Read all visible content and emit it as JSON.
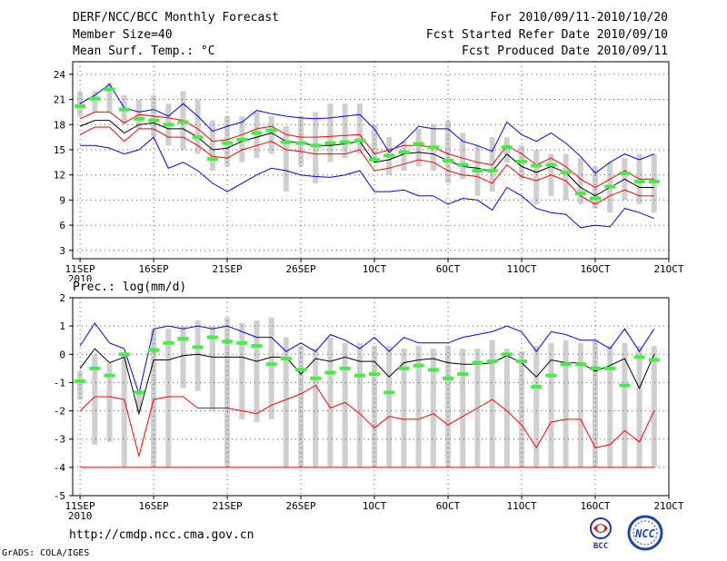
{
  "header": {
    "title": "DERF/NCC/BCC Monthly Forecast",
    "member_size": "Member Size=40",
    "variable": "Mean Surf. Temp.: °C",
    "period": "For 2010/09/11-2010/10/20",
    "start_date": "Fcst Started Refer Date 2010/09/10",
    "produced_date": "Fcst Produced Date 2010/09/11"
  },
  "footer": {
    "url": "http://cmdp.ncc.cma.gov.cn",
    "credit": "GrADS: COLA/IGES"
  },
  "logos": {
    "left_text": "BCC",
    "right_text": "NCC"
  },
  "colors": {
    "envelope": "#0000ff",
    "percentile": "#ff0000",
    "mean": "#000000",
    "observed": "#44ee44",
    "box": "#cfcfcf"
  },
  "chart_data": [
    {
      "type": "line",
      "title": "Mean Surf. Temp.: °C",
      "ylim": [
        2,
        25.5
      ],
      "yticks": [
        3,
        6,
        9,
        12,
        15,
        18,
        21,
        24
      ],
      "xlim": [
        0.5,
        41
      ],
      "xticks": [
        {
          "x": 1,
          "label": "11SEP",
          "sub": "2010"
        },
        {
          "x": 6,
          "label": "16SEP"
        },
        {
          "x": 11,
          "label": "21SEP"
        },
        {
          "x": 16,
          "label": "26SEP"
        },
        {
          "x": 21,
          "label": "1OCT"
        },
        {
          "x": 26,
          "label": "6OCT"
        },
        {
          "x": 31,
          "label": "11OCT"
        },
        {
          "x": 36,
          "label": "16OCT"
        },
        {
          "x": 41,
          "label": "21OCT"
        }
      ],
      "x": [
        1,
        2,
        3,
        4,
        5,
        6,
        7,
        8,
        9,
        10,
        11,
        12,
        13,
        14,
        15,
        16,
        17,
        18,
        19,
        20,
        21,
        22,
        23,
        24,
        25,
        26,
        27,
        28,
        29,
        30,
        31,
        32,
        33,
        34,
        35,
        36,
        37,
        38,
        39,
        40
      ],
      "series": [
        {
          "name": "max",
          "color": "#0000ff",
          "values": [
            20.5,
            21.5,
            22.8,
            20,
            19.5,
            19.8,
            19,
            20.5,
            19,
            17.2,
            17.8,
            18.3,
            19.7,
            19.3,
            19,
            18.8,
            18.7,
            18.8,
            19,
            19.2,
            17.5,
            14.7,
            16,
            17.8,
            17.5,
            17.5,
            16,
            15.5,
            14.8,
            18.3,
            16.8,
            16,
            17,
            15.8,
            14.2,
            12.2,
            13.5,
            14.5,
            13.8,
            14.5
          ]
        },
        {
          "name": "p75",
          "color": "#ff0000",
          "values": [
            18.7,
            19.5,
            19.5,
            18.2,
            19.2,
            19,
            18.8,
            18.5,
            17.5,
            16,
            16.2,
            16.8,
            17.5,
            17.8,
            16.8,
            16.5,
            16.5,
            16.6,
            16.7,
            16.8,
            14.5,
            15,
            15.5,
            15.5,
            15.3,
            14.5,
            14,
            13.5,
            13.2,
            15.5,
            14.5,
            13.2,
            14,
            13,
            11.5,
            10.5,
            11.5,
            12.5,
            11.5,
            11.5
          ]
        },
        {
          "name": "mean",
          "color": "#000000",
          "values": [
            17.8,
            18.5,
            18.5,
            17,
            18,
            18.2,
            17.5,
            17.5,
            16.5,
            15,
            15.2,
            16,
            16.5,
            17,
            16,
            15.8,
            15.5,
            15.5,
            15.7,
            16,
            13.5,
            13.8,
            14.5,
            14.7,
            14.5,
            13.7,
            13,
            12.8,
            12.4,
            14.5,
            13,
            12.3,
            13,
            12.3,
            10.5,
            9.5,
            10.5,
            11.5,
            10.5,
            10.5
          ]
        },
        {
          "name": "p25",
          "color": "#ff0000",
          "values": [
            16.8,
            17.7,
            17.7,
            16,
            17.5,
            17.5,
            16.5,
            16.5,
            15.5,
            14.2,
            14,
            15,
            15.5,
            16,
            15,
            14.8,
            14.5,
            14.5,
            14.5,
            15,
            12.5,
            12.8,
            13.3,
            13.8,
            13.5,
            12.5,
            12,
            11.8,
            11,
            13.2,
            11.8,
            11.3,
            12,
            11.3,
            9.5,
            8.5,
            9.5,
            10.2,
            9.5,
            9.5
          ]
        },
        {
          "name": "min",
          "color": "#0000ff",
          "values": [
            15.5,
            15.5,
            15.2,
            14.5,
            15,
            16.5,
            12.8,
            13.5,
            12.5,
            11,
            10,
            11,
            12,
            12.8,
            12.5,
            12,
            11.8,
            11.7,
            12,
            12.5,
            10,
            10,
            10.2,
            9.5,
            9.5,
            8.5,
            9.2,
            9,
            7.8,
            10.5,
            9.5,
            8,
            7.5,
            7.3,
            5.7,
            6,
            5.8,
            8,
            7.5,
            6.8
          ]
        }
      ],
      "boxes": {
        "hi": [
          22,
          22,
          23,
          21.5,
          21,
          21.5,
          20.5,
          22,
          21,
          18.5,
          19,
          19,
          19.5,
          19,
          17.8,
          19,
          19.5,
          20.5,
          20.5,
          20.5,
          18,
          16.5,
          16,
          17.5,
          18,
          18.5,
          17,
          15.5,
          16.5,
          16.5,
          15.5,
          15,
          14.5,
          14.5,
          14,
          13,
          13.5,
          14,
          14.5,
          14.5
        ],
        "lo": [
          19,
          19.5,
          19.5,
          18,
          17.5,
          16.5,
          15.5,
          15,
          14.5,
          12.5,
          13,
          13.5,
          14,
          14.5,
          10,
          13,
          11,
          13.5,
          14,
          14.5,
          14,
          12,
          12.5,
          13,
          12.5,
          11,
          11.5,
          9.5,
          10,
          13.5,
          11.5,
          8.5,
          9.5,
          9,
          8.5,
          8,
          7.5,
          9,
          8.5,
          7.5
        ]
      },
      "observed": [
        20.2,
        21.1,
        22.2,
        19.8,
        18.7,
        18.5,
        18.0,
        18.3,
        16.5,
        13.9,
        15.8,
        16.2,
        17.0,
        17.3,
        15.9,
        15.8,
        15.5,
        15.8,
        15.9,
        16.1,
        13.8,
        14.3,
        14.7,
        15.7,
        15.3,
        13.7,
        13.2,
        12.5,
        12.5,
        15.3,
        13.6,
        13.1,
        13.2,
        12.3,
        9.8,
        9.2,
        10.6,
        12.2,
        11.2,
        11.2
      ]
    },
    {
      "type": "line",
      "title": "Prec.: log(mm/d)",
      "ylim": [
        -5,
        2
      ],
      "yticks": [
        -5,
        -4,
        -3,
        -2,
        -1,
        0,
        1,
        2
      ],
      "xlim": [
        0.5,
        41
      ],
      "xticks": [
        {
          "x": 1,
          "label": "11SEP",
          "sub": "2010"
        },
        {
          "x": 6,
          "label": "16SEP"
        },
        {
          "x": 11,
          "label": "21SEP"
        },
        {
          "x": 16,
          "label": "26SEP"
        },
        {
          "x": 21,
          "label": "1OCT"
        },
        {
          "x": 26,
          "label": "6OCT"
        },
        {
          "x": 31,
          "label": "11OCT"
        },
        {
          "x": 36,
          "label": "16OCT"
        },
        {
          "x": 41,
          "label": "21OCT"
        }
      ],
      "x": [
        1,
        2,
        3,
        4,
        5,
        6,
        7,
        8,
        9,
        10,
        11,
        12,
        13,
        14,
        15,
        16,
        17,
        18,
        19,
        20,
        21,
        22,
        23,
        24,
        25,
        26,
        27,
        28,
        29,
        30,
        31,
        32,
        33,
        34,
        35,
        36,
        37,
        38,
        39,
        40
      ],
      "series": [
        {
          "name": "max",
          "color": "#0000ff",
          "values": [
            0.3,
            1.1,
            0.4,
            0.2,
            -1.4,
            0.9,
            1,
            0.9,
            1.0,
            0.9,
            1,
            0.8,
            0.6,
            0.6,
            0.1,
            0.4,
            0.1,
            0.7,
            0.5,
            0.2,
            0.6,
            0.1,
            0.6,
            0.4,
            0.4,
            0.4,
            0.6,
            0.7,
            0.8,
            1,
            0.8,
            0.1,
            0.8,
            0.7,
            0.5,
            0.5,
            0.2,
            0.9,
            0.1,
            0.9
          ]
        },
        {
          "name": "max-p",
          "color": "#000000",
          "values": [
            -0.5,
            0.2,
            -0.3,
            -0.1,
            -2.1,
            -0.2,
            -0.2,
            -0.05,
            0,
            -0.1,
            -0.1,
            -0.1,
            -0.25,
            -0.1,
            -0.1,
            -0.7,
            -0.15,
            -0.25,
            -0.1,
            -0.25,
            -0.25,
            -0.8,
            -0.3,
            -0.2,
            -0.15,
            -0.3,
            -0.35,
            -0.35,
            -0.3,
            -0.05,
            -0.3,
            -0.8,
            -0.2,
            -0.3,
            -0.3,
            -0.6,
            -0.4,
            -0.15,
            -1.2,
            0
          ]
        },
        {
          "name": "min",
          "color": "#ff0000",
          "values": [
            -2,
            -1.5,
            -1.5,
            -1.6,
            -3.6,
            -1.6,
            -1.5,
            -1.5,
            -1.9,
            -1.9,
            -1.9,
            -2,
            -2.1,
            -1.8,
            -1.6,
            -1.4,
            -1.1,
            -1.9,
            -1.7,
            -2.1,
            -2.6,
            -2.2,
            -2.3,
            -2.3,
            -2.1,
            -2.5,
            -2.2,
            -1.9,
            -1.6,
            -2,
            -2.5,
            -3.3,
            -2.4,
            -2.3,
            -2.3,
            -3.3,
            -3.2,
            -2.7,
            -3.1,
            -2
          ]
        },
        {
          "name": "floor",
          "color": "#ff0000",
          "values": [
            -4,
            -4,
            -4,
            -4,
            -4,
            -4,
            -4,
            -4,
            -4,
            -4,
            -4,
            -4,
            -4,
            -4,
            -4,
            -4,
            -4,
            -4,
            -4,
            -4,
            -4,
            -4,
            -4,
            -4,
            -4,
            -4,
            -4,
            -4,
            -4,
            -4,
            -4,
            -4,
            -4,
            -4,
            -4,
            -4,
            -4,
            -4,
            -4,
            -4
          ]
        }
      ],
      "boxes": {
        "hi": [
          -0.6,
          0,
          -0.3,
          0,
          -1.3,
          0.9,
          0.9,
          1,
          1.2,
          1,
          1.3,
          1.1,
          1.2,
          1.3,
          0.6,
          0.3,
          0.2,
          0.6,
          0.4,
          0.4,
          0.3,
          0.3,
          0.2,
          0.3,
          0.2,
          0.3,
          0.2,
          0.2,
          0.5,
          0.2,
          0.1,
          0.3,
          0.4,
          0.5,
          0.4,
          0.5,
          0.3,
          0.4,
          0.3,
          0.3
        ],
        "lo": [
          -1.6,
          -3.2,
          -3.1,
          -4,
          -2,
          -4,
          -4,
          -1.2,
          -1.3,
          -2,
          -4,
          -2.3,
          -2.4,
          -2.3,
          -4,
          -4,
          -4,
          -4,
          -4,
          -4,
          -4,
          -4,
          -4,
          -4,
          -4,
          -4,
          -4,
          -4,
          -4,
          -4,
          -4,
          -4,
          -4,
          -4,
          -4,
          -4,
          -4,
          -4,
          -4,
          -4
        ]
      },
      "observed": [
        -0.95,
        -0.5,
        -0.75,
        0,
        -1.35,
        0.15,
        0.4,
        0.55,
        0.25,
        0.6,
        0.45,
        0.4,
        0.3,
        -0.35,
        -0.15,
        -0.55,
        -0.85,
        -0.65,
        -0.5,
        -0.75,
        -0.7,
        -1.35,
        -0.5,
        -0.4,
        -0.55,
        -0.85,
        -0.7,
        -0.3,
        -0.25,
        0,
        -0.25,
        -1.15,
        -0.75,
        -0.35,
        -0.35,
        -0.5,
        -0.5,
        -1.1,
        -0.1,
        -0.2
      ]
    }
  ]
}
